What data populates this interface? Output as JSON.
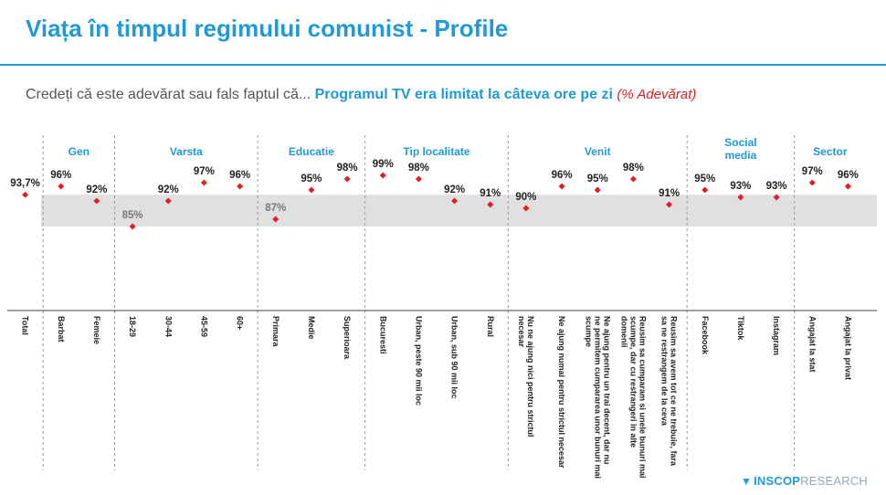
{
  "header": {
    "title": "Viața în timpul regimului comunist - Profile",
    "question_lead": "Credeți că este adevărat sau fals faptul că...",
    "question_highlight": "Programul TV era limitat la câteva ore pe zi",
    "question_note": "(% Adevărat)"
  },
  "brand": {
    "name_bold": "INSCOP",
    "name_light": "RESEARCH"
  },
  "colors": {
    "accent": "#1f9ad6",
    "marker": "#e02020",
    "band": "#e0e0e0"
  },
  "chart_data": {
    "type": "scatter",
    "title": "Programul TV era limitat la câteva ore pe zi",
    "ylabel": "",
    "band": [
      85,
      93.7
    ],
    "groups": [
      {
        "label": "",
        "count": 1
      },
      {
        "label": "Gen",
        "count": 2
      },
      {
        "label": "Varsta",
        "count": 4
      },
      {
        "label": "Educatie",
        "count": 3
      },
      {
        "label": "Tip localitate",
        "count": 4
      },
      {
        "label": "Venit",
        "count": 5
      },
      {
        "label": "Social media",
        "count": 3
      },
      {
        "label": "Sector",
        "count": 2
      }
    ],
    "categories": [
      "Total",
      "Barbat",
      "Femeie",
      "18-29",
      "30-44",
      "45-59",
      "60+",
      "Primara",
      "Medie",
      "Superioara",
      "Bucuresti",
      "Urban, peste 90 mii loc",
      "Urban, sub 90 mii loc",
      "Rural",
      "Nu ne ajung nici pentru strictul necesar",
      "Ne ajung numai pentru strictul necesar",
      "Ne ajung pentru un trai decent, dar nu ne permitem cumpararea unor bunuri mai scumpe",
      "Reusim sa cumparam si unele bunuri mai scumpe, dar cu restrangeri in alte domenii",
      "Reusim sa avem tot ce ne trebuie, fara sa ne restrangem de la ceva",
      "Facebook",
      "Tiktok",
      "Instagram",
      "Angajat la stat",
      "Angajat la privat"
    ],
    "values": [
      93.7,
      96,
      92,
      85,
      92,
      97,
      96,
      87,
      95,
      98,
      99,
      98,
      92,
      91,
      90,
      96,
      95,
      98,
      91,
      95,
      93,
      93,
      97,
      96
    ],
    "value_labels": [
      "93,7%",
      "96%",
      "92%",
      "85%",
      "92%",
      "97%",
      "96%",
      "87%",
      "95%",
      "98%",
      "99%",
      "98%",
      "92%",
      "91%",
      "90%",
      "96%",
      "95%",
      "98%",
      "91%",
      "95%",
      "93%",
      "93%",
      "97%",
      "96%"
    ]
  }
}
